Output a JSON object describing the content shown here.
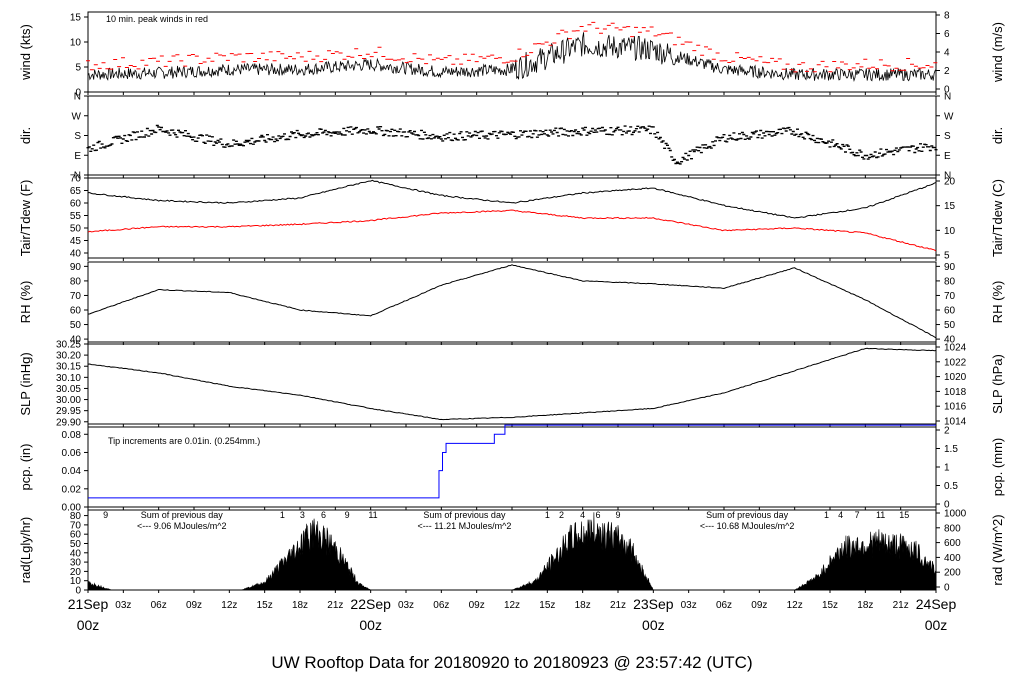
{
  "chart_data": {
    "type": "line",
    "title": "UW Rooftop Data for 20180920  to  20180923 @ 23:57:42  (UTC)",
    "x_axis": {
      "hour_ticks": [
        "03z",
        "06z",
        "09z",
        "12z",
        "15z",
        "18z",
        "21z"
      ],
      "day_labels": [
        {
          "date": "21Sep",
          "time": "00z"
        },
        {
          "date": "22Sep",
          "time": "00z"
        },
        {
          "date": "23Sep",
          "time": "00z"
        },
        {
          "date": "24Sep",
          "time": "00z"
        }
      ]
    },
    "panels": [
      {
        "id": "wind",
        "ylabel_left": "wind (kts)",
        "ylabel_right": "wind (m/s)",
        "yticks_left": [
          "0",
          "5",
          "10",
          "15"
        ],
        "yticks_right": [
          "0",
          "2",
          "4",
          "6",
          "8"
        ],
        "ylim": [
          0,
          16
        ],
        "annotation": "10 min. peak winds in red",
        "series": [
          {
            "name": "wind speed",
            "color": "#000000",
            "x": [
              0,
              6,
              12,
              18,
              24,
              30,
              36,
              42,
              48,
              54,
              60,
              66,
              72
            ],
            "values": [
              3.5,
              3.8,
              4.5,
              4.5,
              5.5,
              4,
              4.5,
              9.5,
              8.5,
              4.5,
              3.5,
              3.5,
              3.5
            ]
          },
          {
            "name": "10 min. peak winds",
            "color": "#ff0000",
            "x": [
              0,
              6,
              12,
              18,
              24,
              30,
              36,
              42,
              48,
              54,
              60,
              66,
              72
            ],
            "values": [
              5.5,
              6,
              7,
              7,
              8,
              6,
              7,
              13,
              12,
              7,
              5,
              5.5,
              5.5
            ]
          }
        ]
      },
      {
        "id": "dir",
        "ylabel_left": "dir.",
        "ylabel_right": "dir.",
        "yticks_left": [
          "N",
          "E",
          "S",
          "W",
          "N"
        ],
        "yticks_right": [
          "N",
          "E",
          "S",
          "W",
          "N"
        ],
        "ylim": [
          0,
          360
        ],
        "series": [
          {
            "name": "wind direction",
            "color": "#000000",
            "x": [
              0,
              6,
              12,
              18,
              24,
              30,
              36,
              42,
              48,
              50,
              54,
              60,
              66,
              72
            ],
            "values": [
              120,
              210,
              140,
              185,
              205,
              175,
              185,
              200,
              205,
              60,
              170,
              200,
              90,
              135
            ]
          }
        ]
      },
      {
        "id": "temp",
        "ylabel_left": "Tair/Tdew (F)",
        "ylabel_right": "Tair/Tdew (C)",
        "yticks_left": [
          "40",
          "45",
          "50",
          "55",
          "60",
          "65",
          "70"
        ],
        "yticks_right": [
          "5",
          "10",
          "15",
          "20"
        ],
        "ylim": [
          38,
          70
        ],
        "series": [
          {
            "name": "Tair",
            "color": "#000000",
            "x": [
              0,
              6,
              12,
              18,
              24,
              30,
              36,
              42,
              48,
              54,
              60,
              66,
              72
            ],
            "values": [
              64,
              61,
              60,
              62,
              69,
              63,
              60,
              64,
              66,
              59,
              54,
              58,
              68
            ]
          },
          {
            "name": "Tdew",
            "color": "#ff0000",
            "x": [
              0,
              6,
              12,
              18,
              24,
              30,
              36,
              42,
              48,
              54,
              60,
              66,
              72
            ],
            "values": [
              48.5,
              50.5,
              50.5,
              51.5,
              53,
              56,
              57,
              54,
              54,
              49,
              50,
              48,
              41
            ]
          }
        ]
      },
      {
        "id": "rh",
        "ylabel_left": "RH (%)",
        "ylabel_right": "RH (%)",
        "yticks_left": [
          "40",
          "50",
          "60",
          "70",
          "80",
          "90"
        ],
        "yticks_right": [
          "40",
          "50",
          "60",
          "70",
          "80",
          "90"
        ],
        "ylim": [
          38,
          93
        ],
        "series": [
          {
            "name": "RH",
            "color": "#000000",
            "x": [
              0,
              6,
              12,
              18,
              24,
              30,
              36,
              42,
              48,
              54,
              60,
              66,
              72
            ],
            "values": [
              57,
              74,
              72,
              60,
              56,
              77,
              91,
              80,
              78,
              75,
              89,
              67,
              41
            ]
          }
        ]
      },
      {
        "id": "slp",
        "ylabel_left": "SLP (inHg)",
        "ylabel_right": "SLP (hPa)",
        "yticks_left": [
          "29.90",
          "29.95",
          "30.00",
          "30.05",
          "30.10",
          "30.15",
          "30.20",
          "30.25"
        ],
        "yticks_right": [
          "1014",
          "1016",
          "1018",
          "1020",
          "1022",
          "1024"
        ],
        "ylim": [
          29.89,
          30.25
        ],
        "series": [
          {
            "name": "SLP",
            "color": "#000000",
            "x": [
              0,
              6,
              12,
              18,
              24,
              30,
              36,
              42,
              48,
              54,
              60,
              66,
              72
            ],
            "values": [
              30.16,
              30.12,
              30.06,
              30.02,
              29.96,
              29.91,
              29.92,
              29.94,
              29.96,
              30.03,
              30.13,
              30.23,
              30.22
            ]
          }
        ]
      },
      {
        "id": "pcp",
        "ylabel_left": "pcp. (in)",
        "ylabel_right": "pcp. (mm)",
        "yticks_left": [
          "0.00",
          "0.02",
          "0.04",
          "0.06",
          "0.08"
        ],
        "yticks_right": [
          "0",
          "0.5",
          "1",
          "1.5",
          "2"
        ],
        "ylim": [
          0,
          0.088
        ],
        "annotation": "Tip increments are 0.01in. (0.254mm.)",
        "series": [
          {
            "name": "accumulated precipitation",
            "color": "#0000ff",
            "x": [
              0,
              29.6,
              29.8,
              30.1,
              30.4,
              34.5,
              35.4,
              72
            ],
            "values": [
              0.01,
              0.01,
              0.04,
              0.06,
              0.07,
              0.08,
              0.09,
              0.09
            ]
          }
        ]
      },
      {
        "id": "rad",
        "ylabel_left": "rad(Lgly/hr)",
        "ylabel_right": "rad (W/m^2)",
        "yticks_left": [
          "0",
          "10",
          "20",
          "30",
          "40",
          "50",
          "60",
          "70",
          "80"
        ],
        "yticks_right": [
          "0",
          "200",
          "400",
          "600",
          "800",
          "1000"
        ],
        "ylim": [
          0,
          86
        ],
        "series": [
          {
            "name": "solar radiation",
            "color": "#000000",
            "x": [
              0,
              1,
              2,
              13,
              15,
              18,
              19,
              20,
              21,
              23,
              24,
              36,
              38,
              41,
              43,
              44,
              46,
              48,
              60,
              62,
              64,
              67,
              70,
              72
            ],
            "values": [
              10,
              5,
              0,
              0,
              10,
              60,
              78,
              68,
              55,
              8,
              0,
              0,
              12,
              68,
              80,
              75,
              58,
              0,
              0,
              18,
              55,
              63,
              56,
              25
            ]
          }
        ],
        "day_annotations": [
          {
            "label": "Sum of previous day",
            "text": "<--- 9.06 MJoules/m^2"
          },
          {
            "label": "Sum of previous day",
            "text": "<--- 11.21 MJoules/m^2"
          },
          {
            "label": "Sum of previous day",
            "text": "<--- 10.68 MJoules/m^2"
          }
        ],
        "hour_markers": [
          "9",
          "1",
          "3",
          "6",
          "9",
          "11",
          "1",
          "2",
          "4",
          "6",
          "9",
          "1",
          "4",
          "7",
          "11",
          "15"
        ]
      }
    ]
  }
}
